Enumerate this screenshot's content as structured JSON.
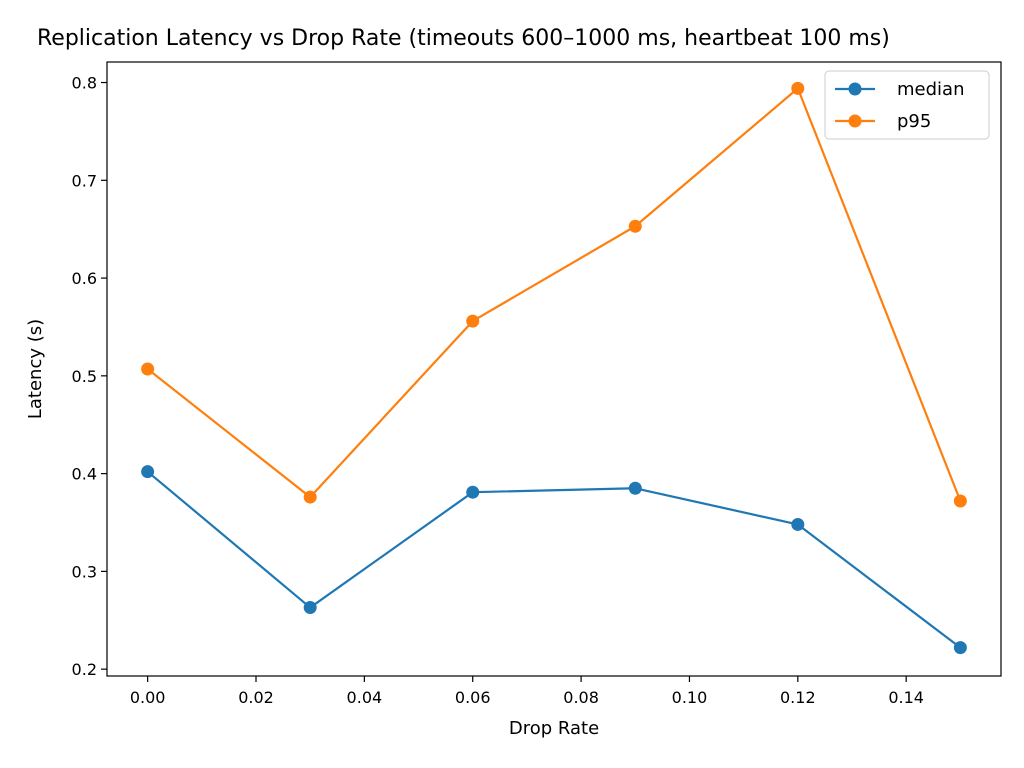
{
  "chart_data": {
    "type": "line",
    "title": "Replication Latency vs Drop Rate (timeouts 600–1000 ms, heartbeat 100 ms)",
    "xlabel": "Drop Rate",
    "ylabel": "Latency (s)",
    "x": [
      0.0,
      0.03,
      0.06,
      0.09,
      0.12,
      0.15
    ],
    "xlim": [
      -0.0075,
      0.1575
    ],
    "ylim": [
      0.193,
      0.821
    ],
    "xticks": [
      0.0,
      0.02,
      0.04,
      0.06,
      0.08,
      0.1,
      0.12,
      0.14
    ],
    "xtick_labels": [
      "0.00",
      "0.02",
      "0.04",
      "0.06",
      "0.08",
      "0.10",
      "0.12",
      "0.14"
    ],
    "yticks": [
      0.2,
      0.3,
      0.4,
      0.5,
      0.6,
      0.7,
      0.8
    ],
    "ytick_labels": [
      "0.2",
      "0.3",
      "0.4",
      "0.5",
      "0.6",
      "0.7",
      "0.8"
    ],
    "grid": false,
    "legend_position": "top-right",
    "series": [
      {
        "name": "median",
        "color": "#1f77b4",
        "values": [
          0.402,
          0.263,
          0.381,
          0.385,
          0.348,
          0.222
        ]
      },
      {
        "name": "p95",
        "color": "#ff7f0e",
        "values": [
          0.507,
          0.376,
          0.556,
          0.653,
          0.794,
          0.372
        ]
      }
    ]
  }
}
